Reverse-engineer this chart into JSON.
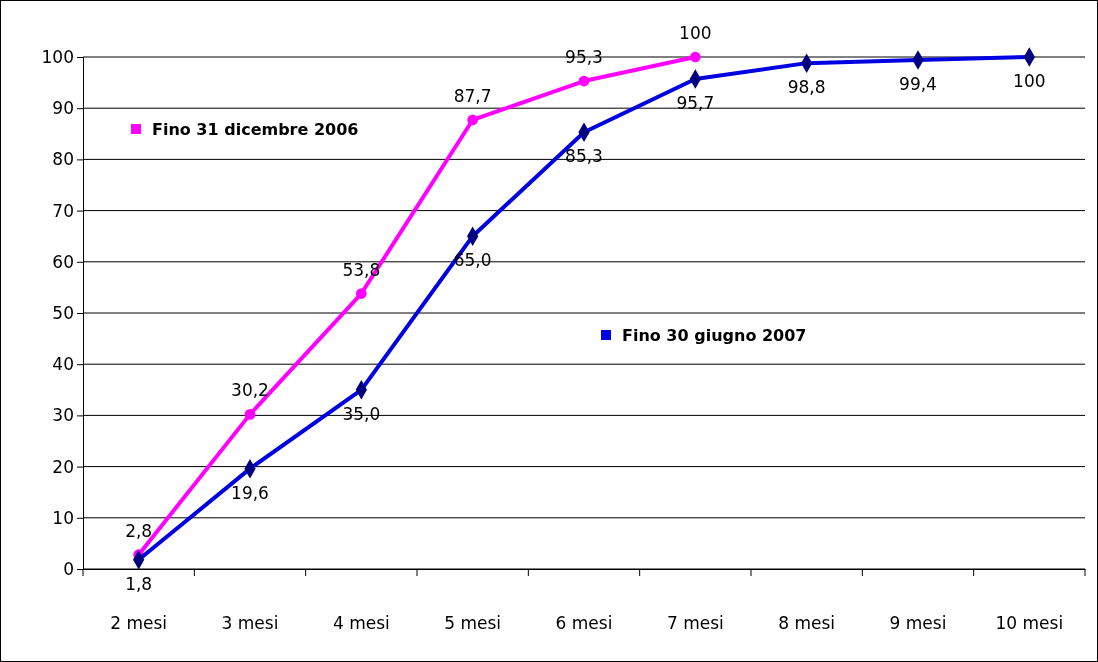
{
  "chart_data": {
    "type": "line",
    "categories": [
      "2 mesi",
      "3 mesi",
      "4 mesi",
      "5 mesi",
      "6 mesi",
      "7 mesi",
      "8 mesi",
      "9 mesi",
      "10 mesi"
    ],
    "series": [
      {
        "name": "Fino 31 dicembre 2006",
        "color": "#ff00ff",
        "marker": "circle",
        "values": [
          2.8,
          30.2,
          53.8,
          87.7,
          95.3,
          100,
          null,
          null,
          null
        ],
        "value_labels": [
          "2,8",
          "30,2",
          "53,8",
          "87,7",
          "95,3",
          "100",
          null,
          null,
          null
        ]
      },
      {
        "name": "Fino 30 giugno 2007",
        "color": "#0000e0",
        "marker": "diamond",
        "values": [
          1.8,
          19.6,
          35.0,
          65.0,
          85.3,
          95.7,
          98.8,
          99.4,
          100
        ],
        "value_labels": [
          "1,8",
          "19,6",
          "35,0",
          "65,0",
          "85,3",
          "95,7",
          "98,8",
          "99,4",
          "100"
        ]
      }
    ],
    "ylim": [
      0,
      100
    ],
    "yticks": [
      0,
      10,
      20,
      30,
      40,
      50,
      60,
      70,
      80,
      90,
      100
    ],
    "grid": "y",
    "legend": "top left"
  }
}
